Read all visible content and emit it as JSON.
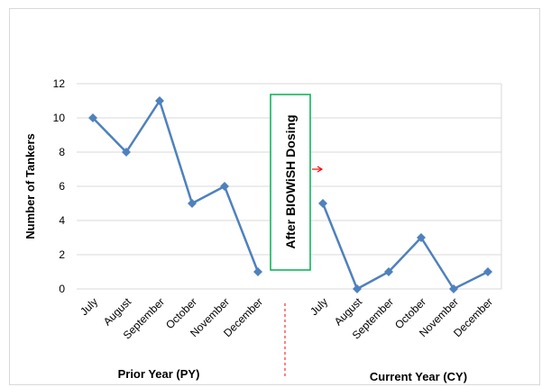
{
  "chart_data": {
    "type": "line",
    "ylabel": "Number of Tankers",
    "ylim": [
      0,
      12
    ],
    "yticks": [
      0,
      2,
      4,
      6,
      8,
      10,
      12
    ],
    "grid": true,
    "marker": "diamond",
    "line_color": "#4F81BD",
    "series": [
      {
        "group": "Prior Year (PY)",
        "categories": [
          "July",
          "August",
          "September",
          "October",
          "November",
          "December"
        ],
        "values": [
          10,
          8,
          11,
          5,
          6,
          1
        ]
      },
      {
        "group": "Current Year (CY)",
        "categories": [
          "July",
          "August",
          "September",
          "October",
          "November",
          "December"
        ],
        "values": [
          5,
          0,
          1,
          3,
          0,
          1
        ]
      }
    ],
    "annotation": {
      "text": "After BIOWiSH Dosing",
      "box_color": "#00B050",
      "arrow_color": "#FF0000",
      "divider_color": "#FF0000"
    }
  }
}
